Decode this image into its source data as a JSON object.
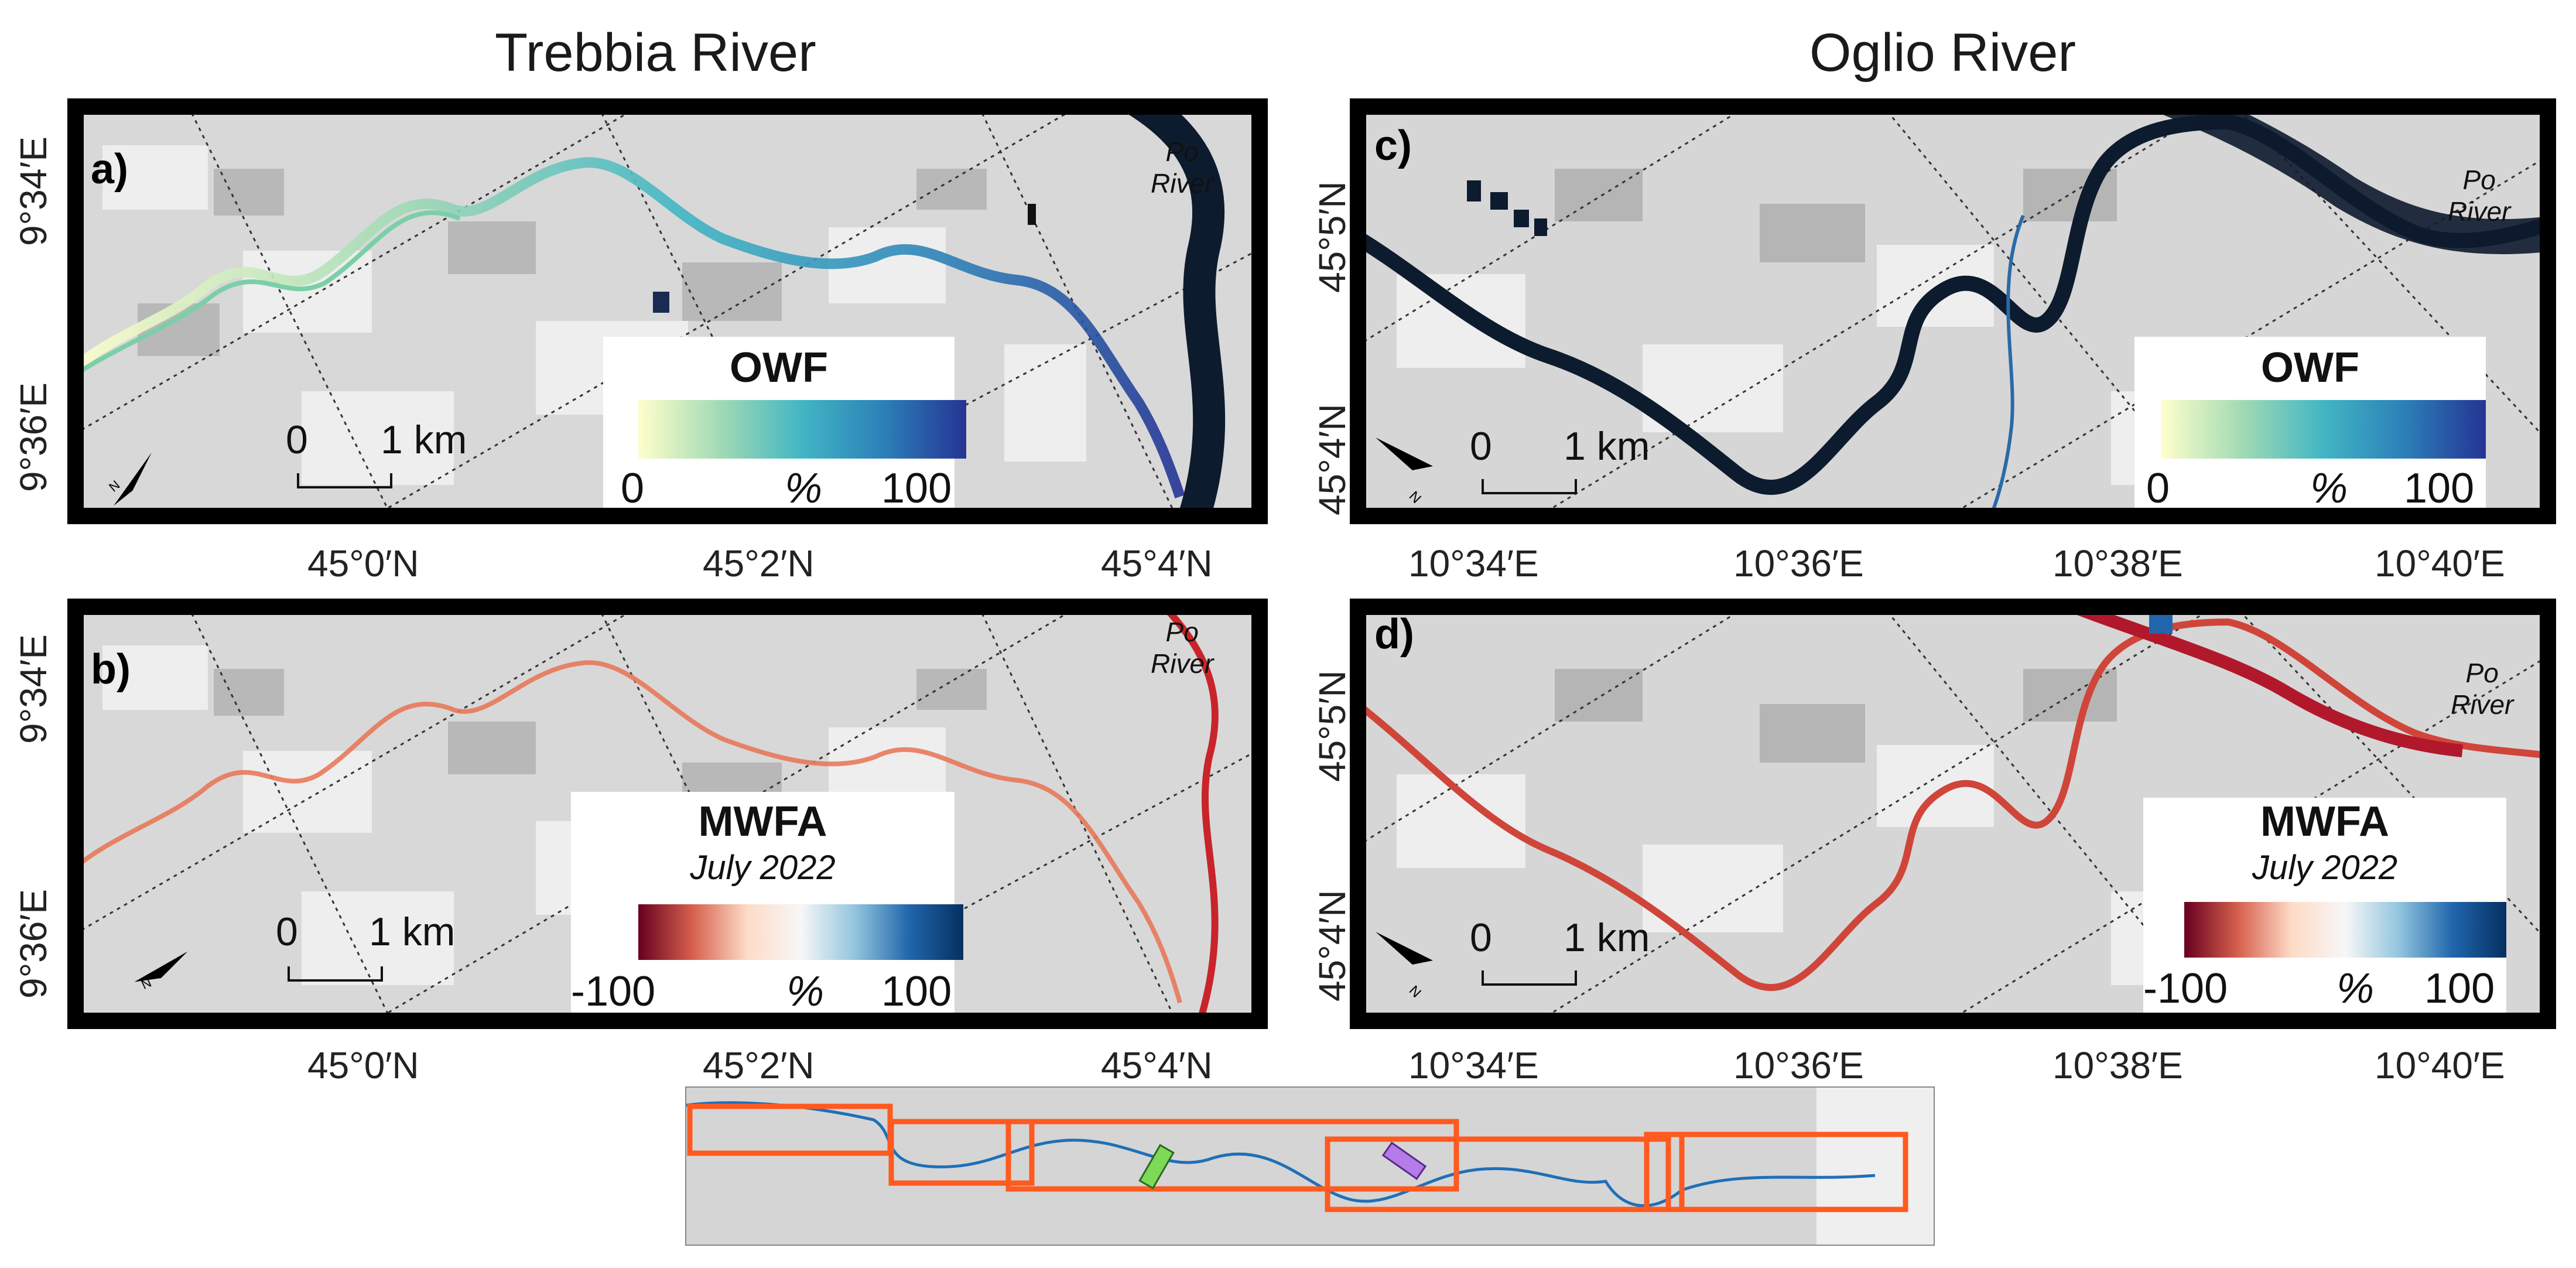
{
  "titles": {
    "left": "Trebbia River",
    "right": "Oglio River"
  },
  "panels": {
    "a": {
      "label": "a)",
      "po": "Po\nRiver",
      "left_ticks": [
        "9°34′E",
        "9°36′E"
      ],
      "bottom_ticks": [
        "45°0′N",
        "45°2′N",
        "45°4′N"
      ],
      "legend": {
        "title": "OWF",
        "subtitle": "",
        "min": "0",
        "unit": "%",
        "max": "100"
      },
      "scale": {
        "zero": "0",
        "km": "1 km"
      },
      "north": "N"
    },
    "b": {
      "label": "b)",
      "po": "Po\nRiver",
      "left_ticks": [
        "9°34′E",
        "9°36′E"
      ],
      "bottom_ticks": [
        "45°0′N",
        "45°2′N",
        "45°4′N"
      ],
      "legend": {
        "title": "MWFA",
        "subtitle": "July 2022",
        "min": "-100",
        "unit": "%",
        "max": "100"
      },
      "scale": {
        "zero": "0",
        "km": "1 km"
      },
      "north": "N"
    },
    "c": {
      "label": "c)",
      "po": "Po\nRiver",
      "left_ticks": [
        "45°5′N",
        "45°4′N"
      ],
      "bottom_ticks": [
        "10°34′E",
        "10°36′E",
        "10°38′E",
        "10°40′E"
      ],
      "legend": {
        "title": "OWF",
        "subtitle": "",
        "min": "0",
        "unit": "%",
        "max": "100"
      },
      "scale": {
        "zero": "0",
        "km": "1 km"
      },
      "north": "N"
    },
    "d": {
      "label": "d)",
      "po": "Po\nRiver",
      "left_ticks": [
        "45°5′N",
        "45°4′N"
      ],
      "bottom_ticks": [
        "10°34′E",
        "10°36′E",
        "10°38′E",
        "10°40′E"
      ],
      "legend": {
        "title": "MWFA",
        "subtitle": "July 2022",
        "min": "-100",
        "unit": "%",
        "max": "100"
      },
      "scale": {
        "zero": "0",
        "km": "1 km"
      },
      "north": "N"
    }
  },
  "colors": {
    "owf_ramp": [
      "#ffffcc",
      "#a1dab4",
      "#41b6c4",
      "#2c7fb8",
      "#253494"
    ],
    "mwfa_ramp": [
      "#67001f",
      "#d6604d",
      "#fddbc7",
      "#f7f7f7",
      "#92c5de",
      "#2166ac",
      "#053061"
    ],
    "overview_river": "#1f6fb8",
    "overview_box": "#ff5a1f",
    "trebbia_marker": "#7ed957",
    "oglio_marker": "#b57be8"
  }
}
